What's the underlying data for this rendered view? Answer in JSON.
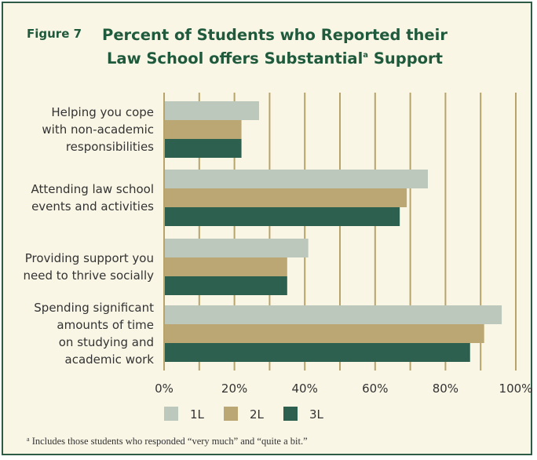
{
  "figure_label": "Figure 7",
  "title_line1": "Percent of Students who Reported their",
  "title_line2_pre": "Law School offers Substantial",
  "title_line2_sup": "a",
  "title_line2_post": " Support",
  "footnote_mark": "a",
  "footnote_text": " Includes those students who responded “very much” and “quite a bit.”",
  "colors": {
    "frame": "#2d5b45",
    "background": "#f9f6e6",
    "title": "#1f5a3c",
    "grid": "#b8a46a"
  },
  "chart_data": {
    "type": "bar",
    "orientation": "horizontal",
    "categories": [
      [
        "Helping you cope",
        "with non-academic",
        "responsibilities"
      ],
      [
        "Attending law school",
        "events and activities"
      ],
      [
        "Providing support you",
        "need to thrive socially"
      ],
      [
        "Spending significant",
        "amounts of time",
        "on studying and",
        "academic work"
      ]
    ],
    "series": [
      {
        "name": "1L",
        "color": "#bdc8bd",
        "values": [
          27,
          75,
          41,
          96
        ]
      },
      {
        "name": "2L",
        "color": "#bba774",
        "values": [
          22,
          69,
          35,
          91
        ]
      },
      {
        "name": "3L",
        "color": "#2e6050",
        "values": [
          22,
          67,
          35,
          87
        ]
      }
    ],
    "xlim": [
      0,
      100
    ],
    "xticks": [
      "0%",
      "20%",
      "40%",
      "60%",
      "80%",
      "100%"
    ],
    "grid": true,
    "legend_position": "bottom"
  }
}
